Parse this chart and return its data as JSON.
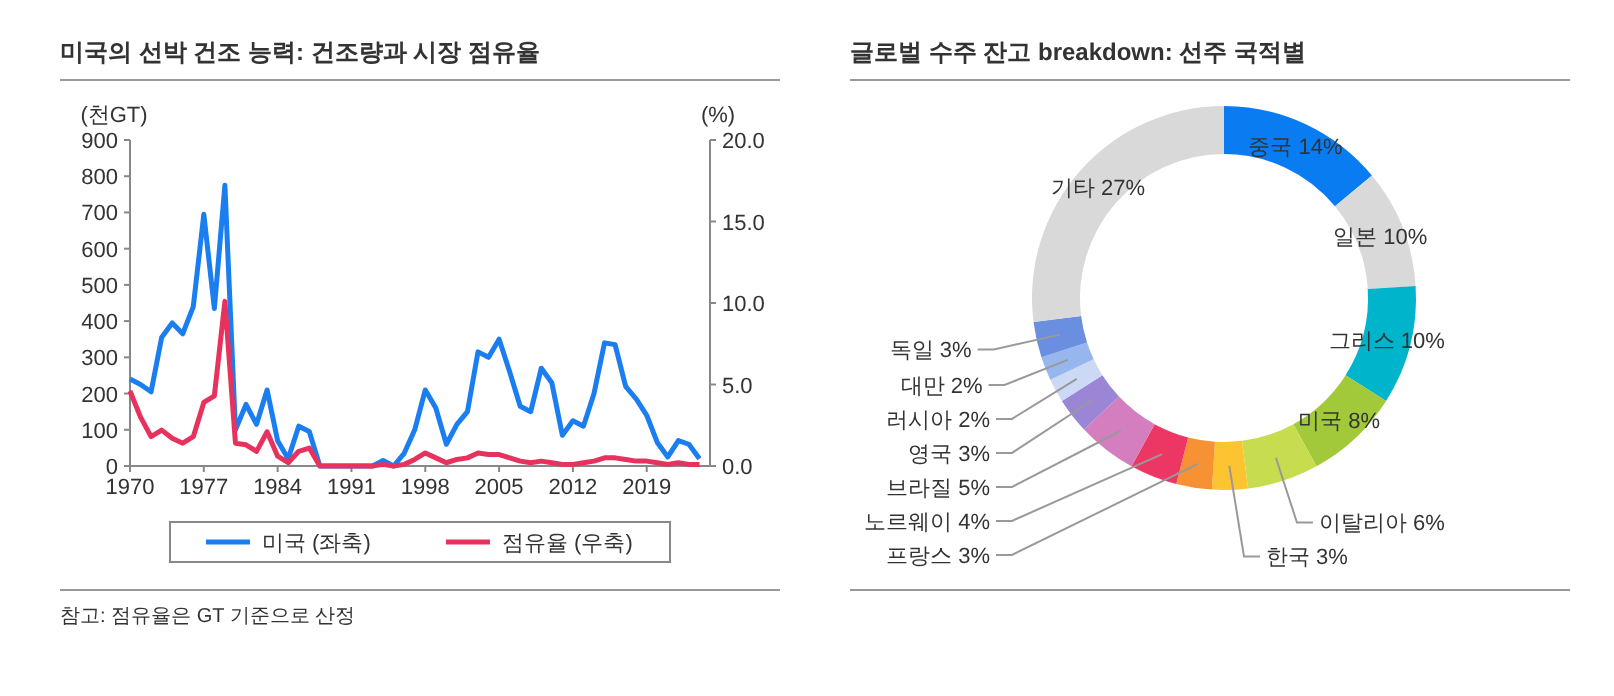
{
  "chart_data": [
    {
      "type": "line",
      "title": "미국의 선박 건조 능력: 건조량과 시장 점유율",
      "ylabel": "(천GT)",
      "y2label": "(%)",
      "x": [
        1970,
        1971,
        1972,
        1973,
        1974,
        1975,
        1976,
        1977,
        1978,
        1979,
        1980,
        1981,
        1982,
        1983,
        1984,
        1985,
        1986,
        1987,
        1988,
        1989,
        1990,
        1991,
        1992,
        1993,
        1994,
        1995,
        1996,
        1997,
        1998,
        1999,
        2000,
        2001,
        2002,
        2003,
        2004,
        2005,
        2006,
        2007,
        2008,
        2009,
        2010,
        2011,
        2012,
        2013,
        2014,
        2015,
        2016,
        2017,
        2018,
        2019,
        2020,
        2021,
        2022,
        2023,
        2024
      ],
      "series": [
        {
          "name": "미국 (좌축)",
          "color": "#1a7ef0",
          "values": [
            240,
            225,
            205,
            355,
            395,
            365,
            440,
            695,
            435,
            775,
            100,
            170,
            115,
            210,
            70,
            20,
            110,
            95,
            0,
            0,
            0,
            0,
            0,
            0,
            15,
            0,
            35,
            100,
            210,
            160,
            60,
            115,
            150,
            315,
            300,
            350,
            260,
            165,
            150,
            270,
            230,
            85,
            125,
            110,
            200,
            340,
            335,
            220,
            185,
            140,
            65,
            25,
            70,
            60,
            20
          ]
        },
        {
          "name": "점유율 (우축)",
          "color": "#e8325e",
          "axis": "y2",
          "values": [
            4.6,
            3.0,
            1.8,
            2.2,
            1.7,
            1.4,
            1.8,
            3.9,
            4.3,
            10.1,
            1.4,
            1.3,
            0.9,
            2.1,
            0.6,
            0.2,
            0.9,
            1.1,
            0,
            0,
            0,
            0,
            0,
            0,
            0.1,
            0,
            0.1,
            0.4,
            0.8,
            0.5,
            0.2,
            0.4,
            0.5,
            0.8,
            0.7,
            0.7,
            0.5,
            0.3,
            0.2,
            0.3,
            0.2,
            0.1,
            0.1,
            0.2,
            0.3,
            0.5,
            0.5,
            0.4,
            0.3,
            0.3,
            0.2,
            0.1,
            0.2,
            0.1,
            0.1
          ]
        }
      ],
      "xlim": [
        1970,
        2025
      ],
      "xticks": [
        1970,
        1977,
        1984,
        1991,
        1998,
        2005,
        2012,
        2019
      ],
      "ylim": [
        0,
        900
      ],
      "yticks": [
        0,
        100,
        200,
        300,
        400,
        500,
        600,
        700,
        800,
        900
      ],
      "y2lim": [
        0,
        20
      ],
      "y2ticks": [
        {
          "value": 0,
          "label": "0.0"
        },
        {
          "value": 5,
          "label": "5.0"
        },
        {
          "value": 10,
          "label": "10.0"
        },
        {
          "value": 15,
          "label": "15.0"
        },
        {
          "value": 20,
          "label": "20.0"
        }
      ],
      "legend": "bottom",
      "annotations": [
        "참고: 점유율은 GT 기준으로 산정"
      ]
    },
    {
      "type": "donut",
      "title": "글로벌 수주 잔고 breakdown: 선주 국적별",
      "categories": [
        "중국",
        "일본",
        "그리스",
        "미국",
        "이탈리아",
        "한국",
        "프랑스",
        "노르웨이",
        "브라질",
        "영국",
        "러시아",
        "대만",
        "독일",
        "기타"
      ],
      "values": [
        14,
        10,
        10,
        8,
        6,
        3,
        3,
        4,
        5,
        3,
        2,
        2,
        3,
        27
      ],
      "value_labels": [
        "14%",
        "10%",
        "10%",
        "8%",
        "6%",
        "3%",
        "3%",
        "4%",
        "5%",
        "3%",
        "2%",
        "2%",
        "3%",
        "27%"
      ],
      "colors": [
        "#0a7cf2",
        "#d9d9d9",
        "#00b4cc",
        "#a2c93a",
        "#c8dc50",
        "#fcc431",
        "#f79234",
        "#ec3764",
        "#d47ec0",
        "#9b86d6",
        "#cbd9f5",
        "#97b6ee",
        "#6a8fe0",
        "#d9d9d9"
      ]
    }
  ]
}
